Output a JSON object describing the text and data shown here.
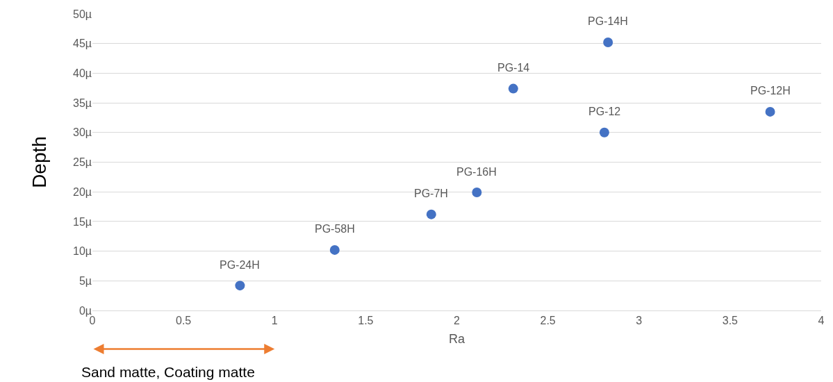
{
  "chart_data": {
    "type": "scatter",
    "xlabel": "Ra",
    "ylabel": "Depth",
    "series": [
      {
        "color": "#4472c4",
        "x": [
          0.81,
          1.33,
          1.86,
          2.11,
          2.31,
          2.83,
          2.81,
          3.72
        ],
        "values": [
          4.2,
          10.2,
          16.2,
          19.9,
          37.4,
          45.2,
          30.0,
          33.5
        ]
      }
    ],
    "marker": "circle",
    "annotations": [
      {
        "text": "PG-24H",
        "x": 0.81,
        "y": 4.2
      },
      {
        "text": "PG-58H",
        "x": 1.33,
        "y": 10.2
      },
      {
        "text": "PG-7H",
        "x": 1.86,
        "y": 16.2
      },
      {
        "text": "PG-16H",
        "x": 2.11,
        "y": 19.9
      },
      {
        "text": "PG-14",
        "x": 2.31,
        "y": 37.4
      },
      {
        "text": "PG-14H",
        "x": 2.83,
        "y": 45.2
      },
      {
        "text": "PG-12",
        "x": 2.81,
        "y": 30.0
      },
      {
        "text": "PG-12H",
        "x": 3.72,
        "y": 33.5
      },
      "Sand matte, Coating matte"
    ],
    "xlim": [
      0,
      4
    ],
    "xticks": [
      0,
      0.5,
      1,
      1.5,
      2,
      2.5,
      3,
      3.5,
      4
    ],
    "ylim": [
      0,
      50
    ],
    "yticks": [
      {
        "value": 0,
        "label": "0µ"
      },
      {
        "value": 5,
        "label": "5µ"
      },
      {
        "value": 10,
        "label": "10µ"
      },
      {
        "value": 15,
        "label": "15µ"
      },
      {
        "value": 20,
        "label": "20µ"
      },
      {
        "value": 25,
        "label": "25µ"
      },
      {
        "value": 30,
        "label": "30µ"
      },
      {
        "value": 35,
        "label": "35µ"
      },
      {
        "value": 40,
        "label": "40µ"
      },
      {
        "value": 45,
        "label": "45µ"
      },
      {
        "value": 50,
        "label": "50µ"
      }
    ],
    "grid": "y"
  }
}
